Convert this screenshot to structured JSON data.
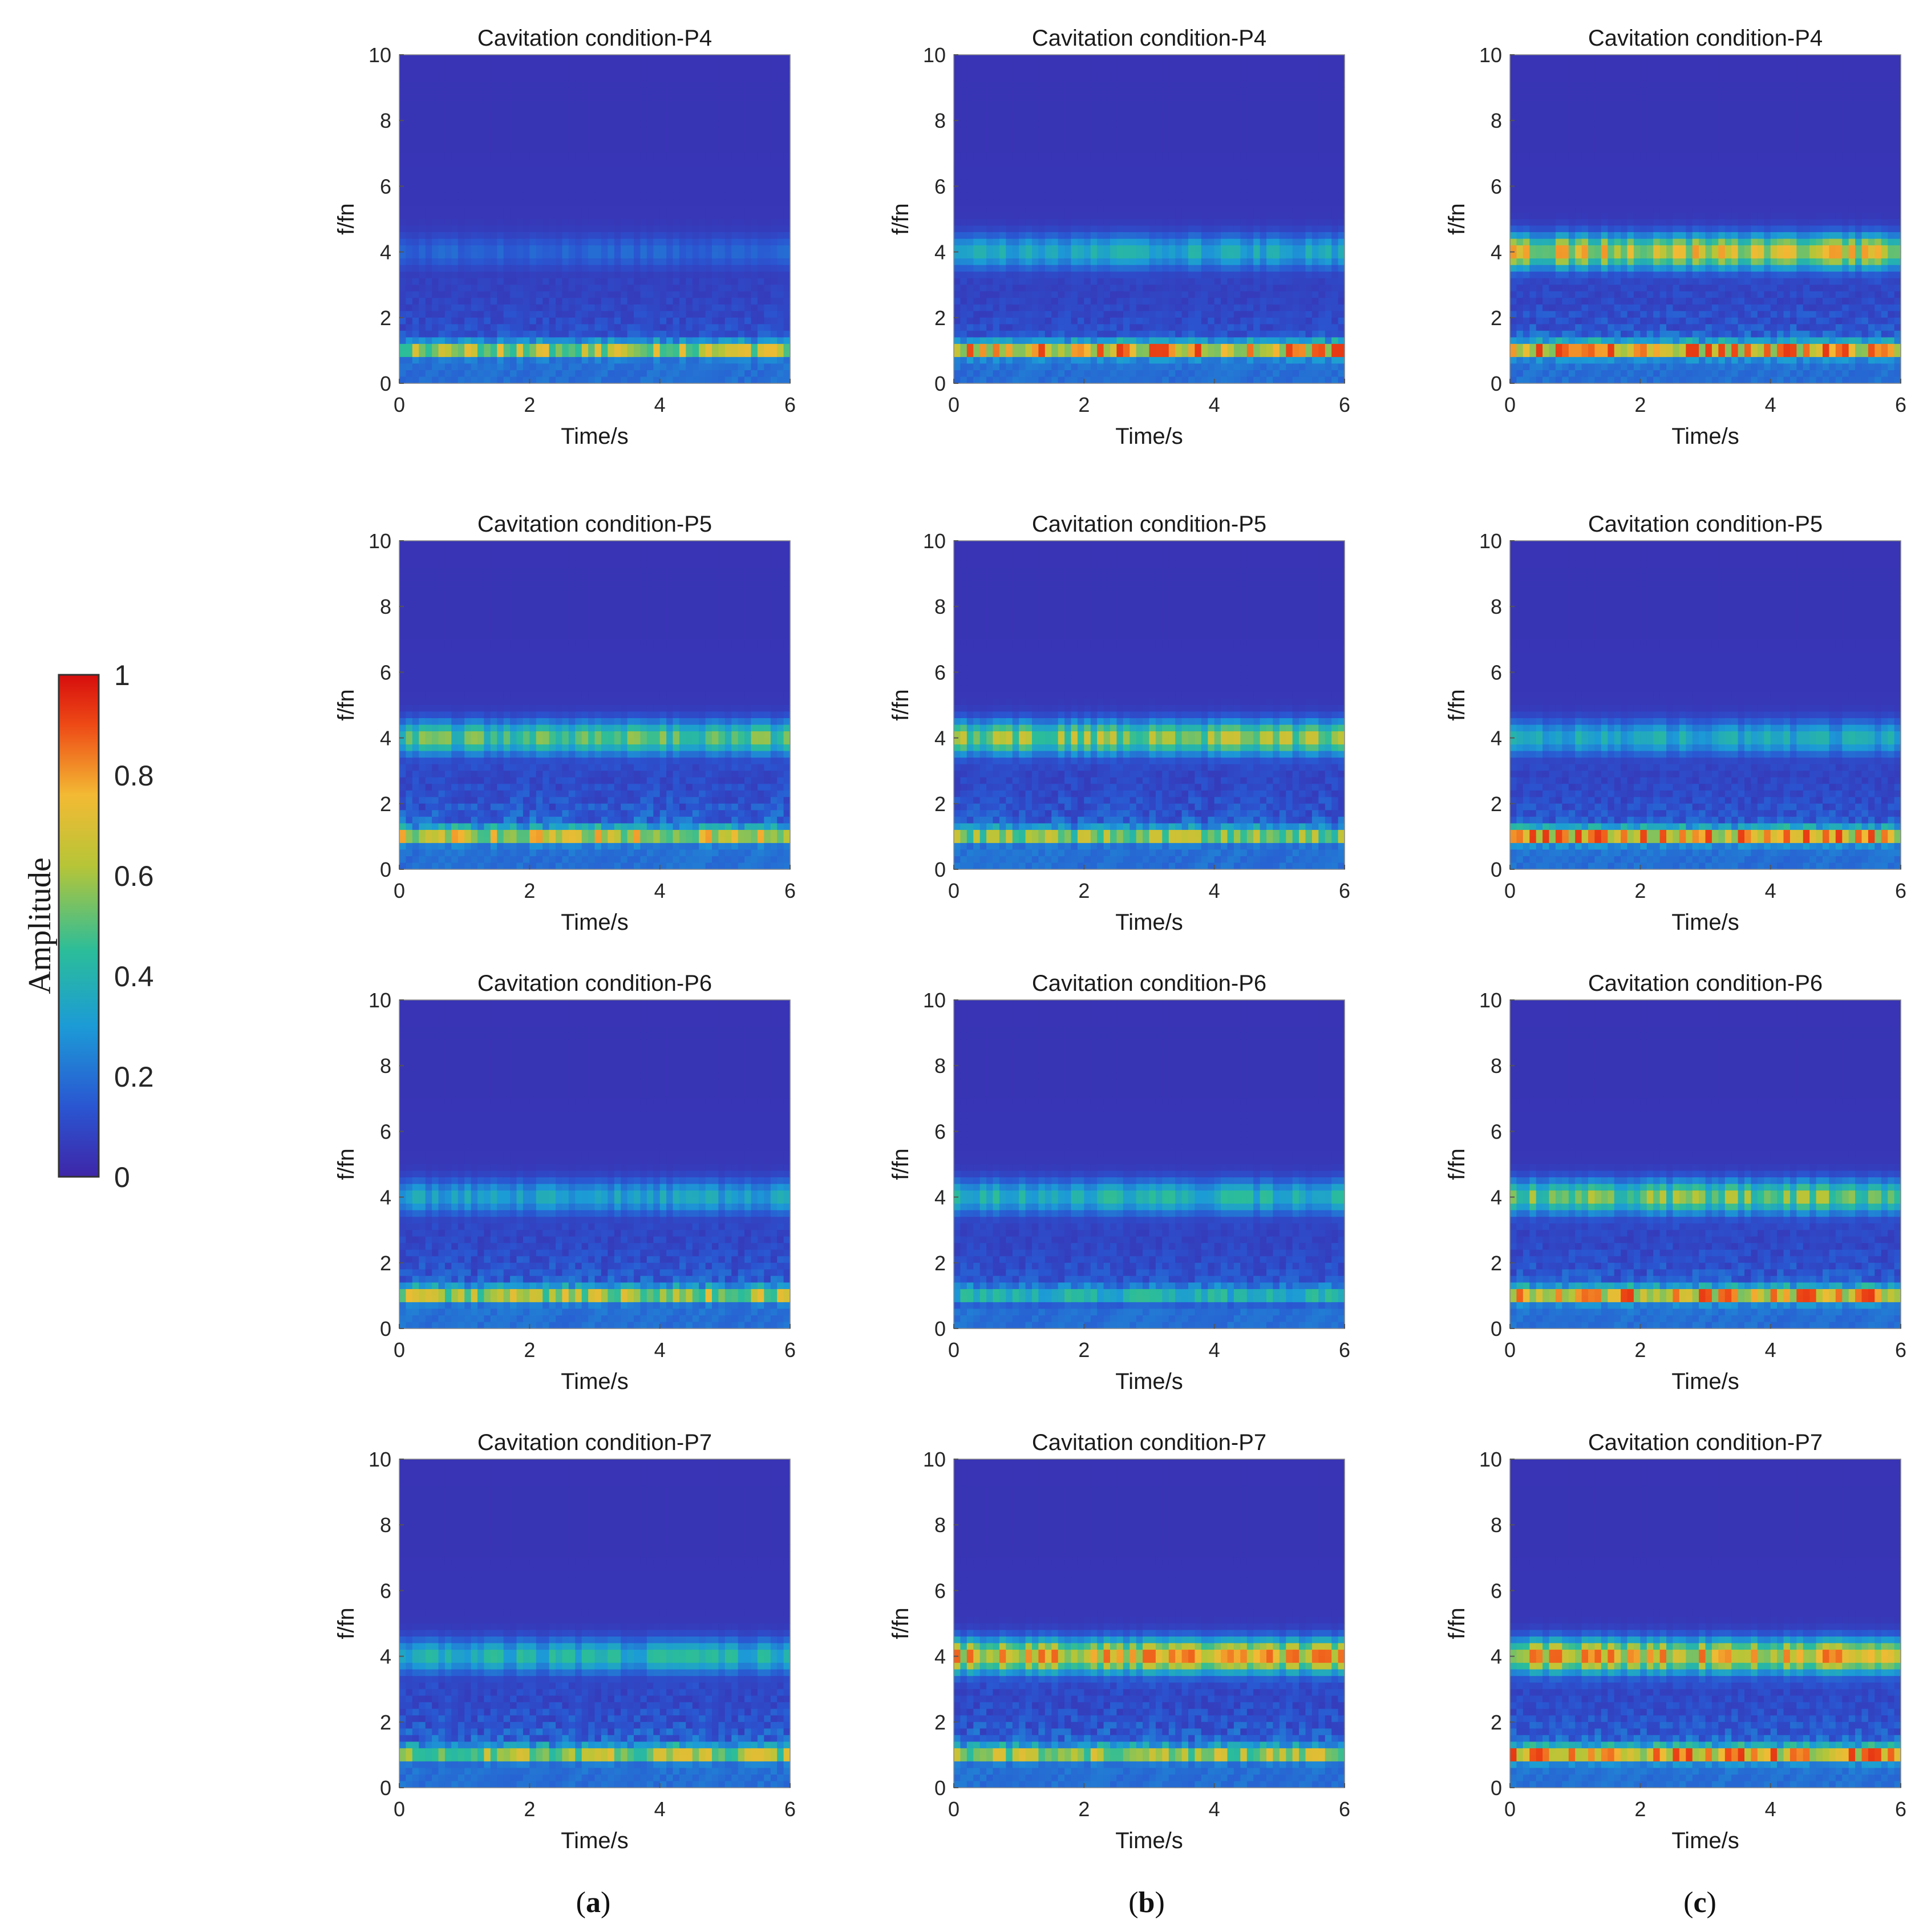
{
  "chart_data": {
    "type": "heatmap",
    "description_of_layout": "4 rows x 3 columns of time-frequency spectrograms",
    "colorbar": {
      "title": "Amplitude",
      "range": [
        0,
        1
      ],
      "ticks": [
        "0",
        "0.2",
        "0.4",
        "0.6",
        "0.8",
        "1"
      ],
      "colormap": [
        "#3e26a8",
        "#2a56d2",
        "#1c9bd6",
        "#2bbd9a",
        "#b7c537",
        "#f3ba34",
        "#ee4a16",
        "#d60d0d"
      ]
    },
    "axes": {
      "xlabel": "Time/s",
      "ylabel": "f/fn",
      "xlim": [
        0,
        6
      ],
      "ylim": [
        0,
        10
      ],
      "xticks": [
        "0",
        "2",
        "4",
        "6"
      ],
      "yticks": [
        "0",
        "2",
        "4",
        "6",
        "8",
        "10"
      ]
    },
    "column_labels": [
      {
        "open": "(",
        "letter": "a",
        "close": ")"
      },
      {
        "open": "(",
        "letter": "b",
        "close": ")"
      },
      {
        "open": "(",
        "letter": "c",
        "close": ")"
      }
    ],
    "panels": [
      {
        "title": "Cavitation condition-P4",
        "base_band": 0.78,
        "harmonic_band": 0.15,
        "noise": 0.35
      },
      {
        "title": "Cavitation condition-P4",
        "base_band": 1.0,
        "harmonic_band": 0.38,
        "noise": 0.35
      },
      {
        "title": "Cavitation condition-P4",
        "base_band": 1.0,
        "harmonic_band": 0.78,
        "noise": 0.5
      },
      {
        "title": "Cavitation condition-P5",
        "base_band": 0.85,
        "harmonic_band": 0.55,
        "noise": 0.6
      },
      {
        "title": "Cavitation condition-P5",
        "base_band": 0.7,
        "harmonic_band": 0.65,
        "noise": 0.5
      },
      {
        "title": "Cavitation condition-P5",
        "base_band": 1.0,
        "harmonic_band": 0.38,
        "noise": 0.45
      },
      {
        "title": "Cavitation condition-P6",
        "base_band": 0.78,
        "harmonic_band": 0.35,
        "noise": 0.5
      },
      {
        "title": "Cavitation condition-P6",
        "base_band": 0.45,
        "harmonic_band": 0.42,
        "noise": 0.4
      },
      {
        "title": "Cavitation condition-P6",
        "base_band": 1.0,
        "harmonic_band": 0.6,
        "noise": 0.5
      },
      {
        "title": "Cavitation condition-P7",
        "base_band": 0.75,
        "harmonic_band": 0.42,
        "noise": 0.6
      },
      {
        "title": "Cavitation condition-P7",
        "base_band": 0.75,
        "harmonic_band": 0.85,
        "noise": 0.6
      },
      {
        "title": "Cavitation condition-P7",
        "base_band": 1.0,
        "harmonic_band": 0.85,
        "noise": 0.55
      }
    ]
  }
}
